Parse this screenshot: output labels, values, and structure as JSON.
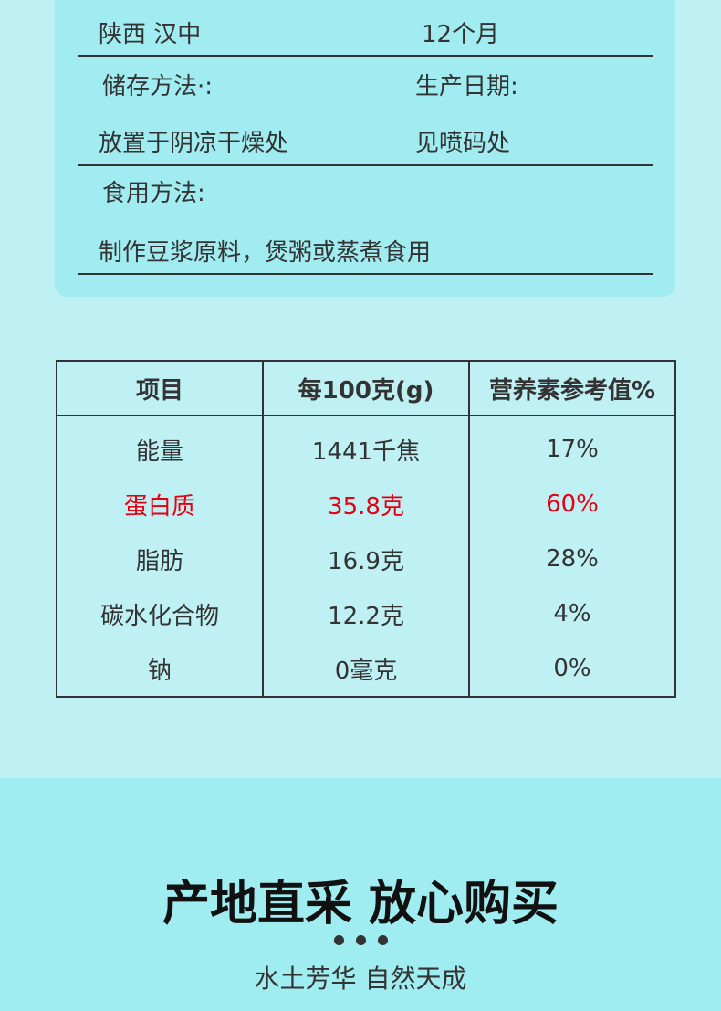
{
  "info_card": {
    "origin_value": "陕西 汉中",
    "shelf_life_value": "12个月",
    "storage_label": "储存方法·:",
    "production_date_label": "生产日期:",
    "storage_value": "放置于阴凉干燥处",
    "production_date_value": "见喷码处",
    "usage_label": "食用方法:",
    "usage_value": "制作豆浆原料，煲粥或蒸煮食用"
  },
  "nutrition_table": {
    "headers": [
      "项目",
      "每100克(g)",
      "营养素参考值%"
    ],
    "rows": [
      [
        "能量",
        "1441千焦",
        "17%"
      ],
      [
        "蛋白质",
        "35.8克",
        "60%"
      ],
      [
        "脂肪",
        "16.9克",
        "28%"
      ],
      [
        "碳水化合物",
        "12.2克",
        "4%"
      ],
      [
        "钠",
        "0毫克",
        "0%"
      ]
    ],
    "highlight_color": "#e60012"
  },
  "banner": {
    "title": "产地直采 放心购买",
    "subtitle": "水土芳华 自然天成"
  }
}
